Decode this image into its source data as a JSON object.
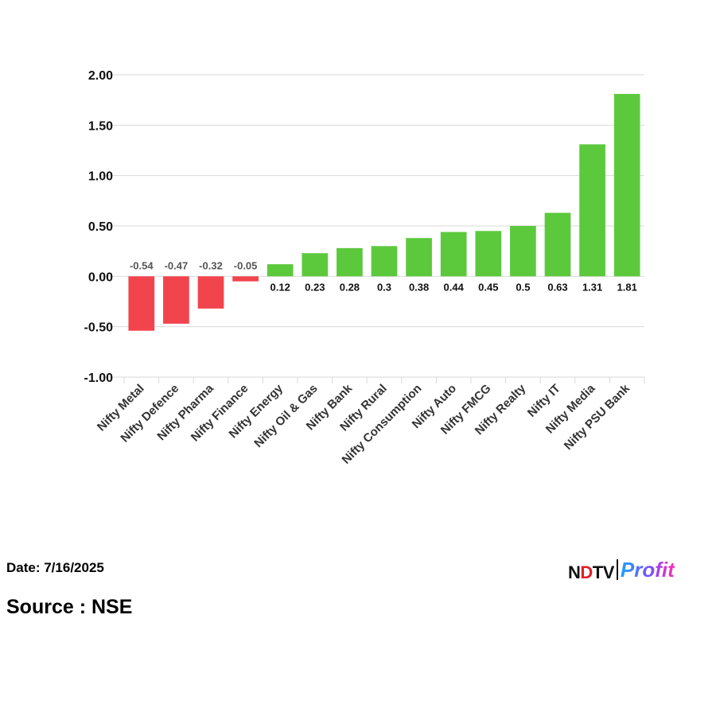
{
  "chart_data": {
    "type": "bar",
    "title": "",
    "xlabel": "",
    "ylabel": "",
    "ylim": [
      -1.0,
      2.0
    ],
    "yticks": [
      "2.00",
      "1.50",
      "1.00",
      "0.50",
      "0.00",
      "-0.50",
      "-1.00"
    ],
    "ytick_values": [
      2.0,
      1.5,
      1.0,
      0.5,
      0.0,
      -0.5,
      -1.0
    ],
    "grid": true,
    "legend": "none",
    "categories": [
      "Nifty Metal",
      "Nifty Defence",
      "Nifty Pharma",
      "Nifty Finance",
      "Nifty Energy",
      "Nifty Oil & Gas",
      "Nifty Bank",
      "Nifty Rural",
      "Nifty Consumption",
      "Nifty Auto",
      "Nifty FMCG",
      "Nifty Realty",
      "Nifty IT",
      "Nifty Media",
      "Nifty PSU Bank"
    ],
    "values": [
      -0.54,
      -0.47,
      -0.32,
      -0.05,
      0.12,
      0.23,
      0.28,
      0.3,
      0.38,
      0.44,
      0.45,
      0.5,
      0.63,
      1.31,
      1.81
    ],
    "data_labels": [
      "-0.54",
      "-0.47",
      "-0.32",
      "-0.05",
      "0.12",
      "0.23",
      "0.28",
      "0.3",
      "0.38",
      "0.44",
      "0.45",
      "0.5",
      "0.63",
      "1.31",
      "1.81"
    ],
    "colors": {
      "positive": "#5cc93d",
      "negative": "#f2444d",
      "grid": "#d9d9d9"
    }
  },
  "footer": {
    "date": "Date: 7/16/2025",
    "source": "Source : NSE"
  },
  "brand": {
    "ndtv_a": "N",
    "ndtv_dot": "D",
    "ndtv_b": "TV",
    "profit": "Profit"
  }
}
